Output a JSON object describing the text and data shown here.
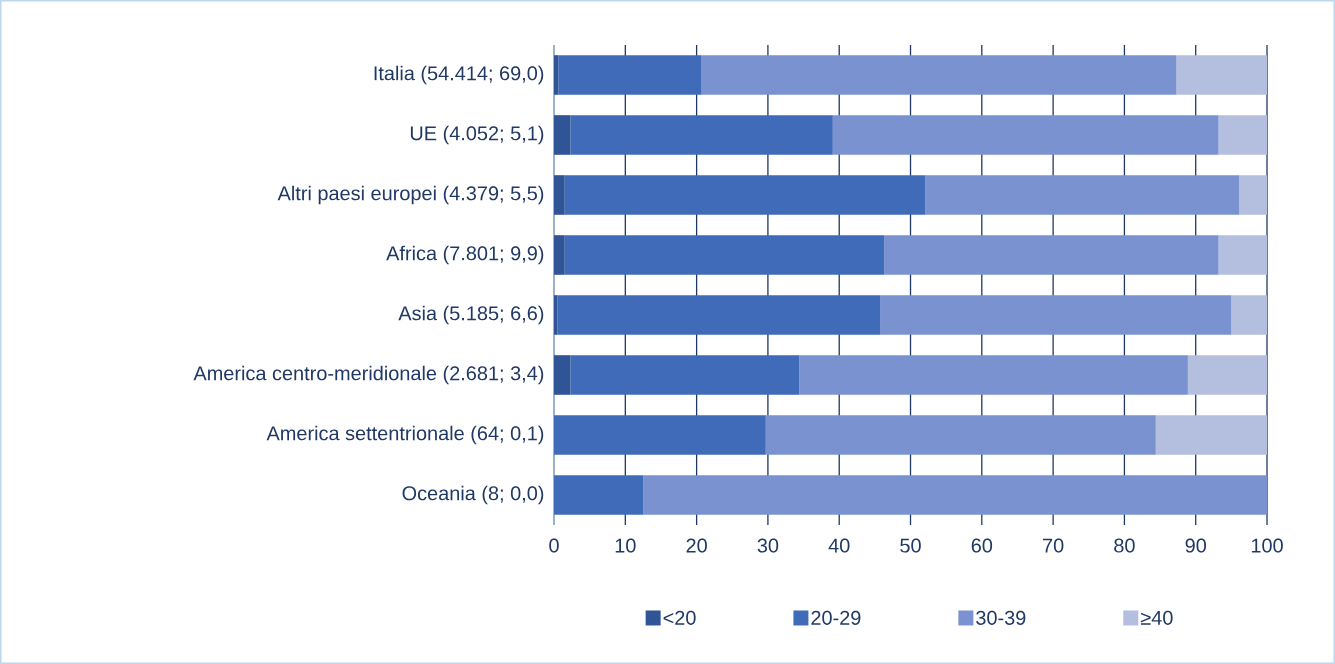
{
  "chart_data": {
    "type": "bar",
    "orientation": "horizontal",
    "stacked": true,
    "categories": [
      "Italia (54.414; 69,0)",
      "UE (4.052; 5,1)",
      "Altri paesi europei (4.379; 5,5)",
      "Africa (7.801; 9,9)",
      "Asia (5.185; 6,6)",
      "America centro-meridionale (2.681; 3,4)",
      "America settentrionale (64; 0,1)",
      "Oceania (8; 0,0)"
    ],
    "series": [
      {
        "name": "<20",
        "color": "#2f5597",
        "values": [
          0.6,
          2.3,
          1.5,
          1.5,
          0.5,
          2.3,
          0,
          0
        ]
      },
      {
        "name": "20-29",
        "color": "#3f6bb8",
        "values": [
          20.1,
          36.8,
          50.6,
          44.8,
          45.3,
          32.1,
          29.7,
          12.5
        ]
      },
      {
        "name": "30-39",
        "color": "#7a92cf",
        "values": [
          66.6,
          54.1,
          44.0,
          46.9,
          49.2,
          54.5,
          54.7,
          87.5
        ]
      },
      {
        "name": "≥40",
        "color": "#b4bede",
        "values": [
          12.7,
          6.8,
          3.9,
          6.8,
          5.0,
          11.1,
          15.6,
          0
        ]
      }
    ],
    "xlim": [
      0,
      100
    ],
    "xticks": [
      0,
      10,
      20,
      30,
      40,
      50,
      60,
      70,
      80,
      90,
      100
    ],
    "grid": "x",
    "legend": "bottom"
  }
}
